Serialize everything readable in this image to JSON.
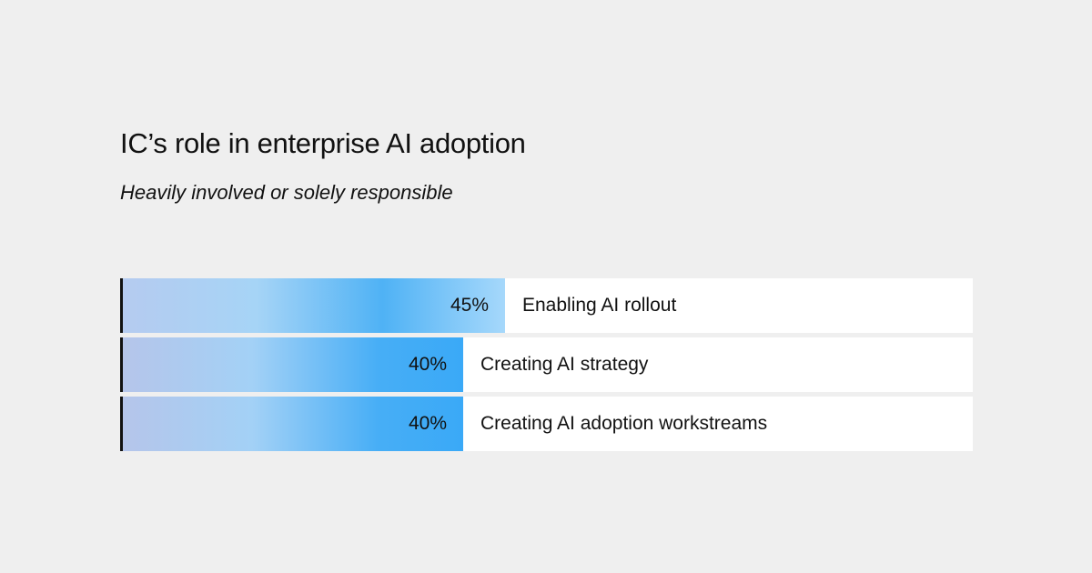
{
  "title": "IC’s role in enterprise AI adoption",
  "subtitle": "Heavily involved or solely responsible",
  "chart_data": {
    "type": "bar",
    "orientation": "horizontal",
    "title": "IC’s role in enterprise AI adoption",
    "subtitle": "Heavily involved or solely responsible",
    "categories": [
      "Enabling AI rollout",
      "Creating AI strategy",
      "Creating AI adoption workstreams"
    ],
    "values": [
      45,
      40,
      40
    ],
    "value_labels": [
      "45%",
      "40%",
      "40%"
    ],
    "unit": "%",
    "xlim": [
      0,
      100
    ],
    "grid": false,
    "legend": "none"
  }
}
